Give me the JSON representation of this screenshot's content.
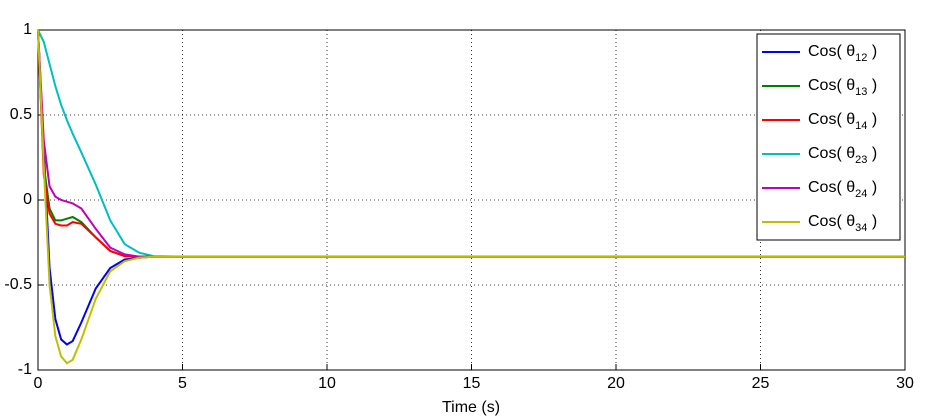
{
  "chart_data": {
    "type": "line",
    "x_label": "Time (s)",
    "x": [
      0,
      0.2,
      0.4,
      0.6,
      0.8,
      1,
      1.2,
      1.5,
      2,
      2.5,
      3,
      3.5,
      4,
      5,
      10,
      20,
      30
    ],
    "series": [
      {
        "name": "Cos( θ12 )",
        "color": "#0000ff",
        "values": [
          1,
          0.3,
          -0.4,
          -0.7,
          -0.82,
          -0.85,
          -0.83,
          -0.72,
          -0.52,
          -0.4,
          -0.35,
          -0.34,
          -0.333,
          -0.333,
          -0.333,
          -0.333,
          -0.333
        ]
      },
      {
        "name": "Cos( θ13 )",
        "color": "#008000",
        "values": [
          1,
          0.2,
          -0.05,
          -0.12,
          -0.12,
          -0.11,
          -0.1,
          -0.13,
          -0.22,
          -0.3,
          -0.33,
          -0.333,
          -0.333,
          -0.333,
          -0.333,
          -0.333,
          -0.333
        ]
      },
      {
        "name": "Cos( θ14 )",
        "color": "#ff0000",
        "values": [
          1,
          0.15,
          -0.08,
          -0.14,
          -0.15,
          -0.15,
          -0.13,
          -0.14,
          -0.22,
          -0.3,
          -0.33,
          -0.333,
          -0.333,
          -0.333,
          -0.333,
          -0.333,
          -0.333
        ]
      },
      {
        "name": "Cos( θ23 )",
        "color": "#00bfbf",
        "values": [
          1,
          0.93,
          0.8,
          0.67,
          0.56,
          0.47,
          0.39,
          0.28,
          0.09,
          -0.12,
          -0.26,
          -0.31,
          -0.33,
          -0.333,
          -0.333,
          -0.333,
          -0.333
        ]
      },
      {
        "name": "Cos( θ24 )",
        "color": "#bf00bf",
        "values": [
          1,
          0.35,
          0.08,
          0.02,
          0,
          -0.01,
          -0.02,
          -0.05,
          -0.17,
          -0.28,
          -0.32,
          -0.333,
          -0.333,
          -0.333,
          -0.333,
          -0.333,
          -0.333
        ]
      },
      {
        "name": "Cos( θ34 )",
        "color": "#bfbf00",
        "values": [
          1,
          0.2,
          -0.5,
          -0.8,
          -0.92,
          -0.96,
          -0.94,
          -0.82,
          -0.58,
          -0.42,
          -0.36,
          -0.34,
          -0.333,
          -0.333,
          -0.333,
          -0.333,
          -0.333
        ]
      }
    ],
    "xlim": [
      0,
      30
    ],
    "xticks": [
      0,
      5,
      10,
      15,
      20,
      25,
      30
    ],
    "ylim": [
      -1,
      1
    ],
    "yticks": [
      -1,
      -0.5,
      0,
      0.5,
      1
    ],
    "grid": true,
    "legend": "top-right"
  }
}
